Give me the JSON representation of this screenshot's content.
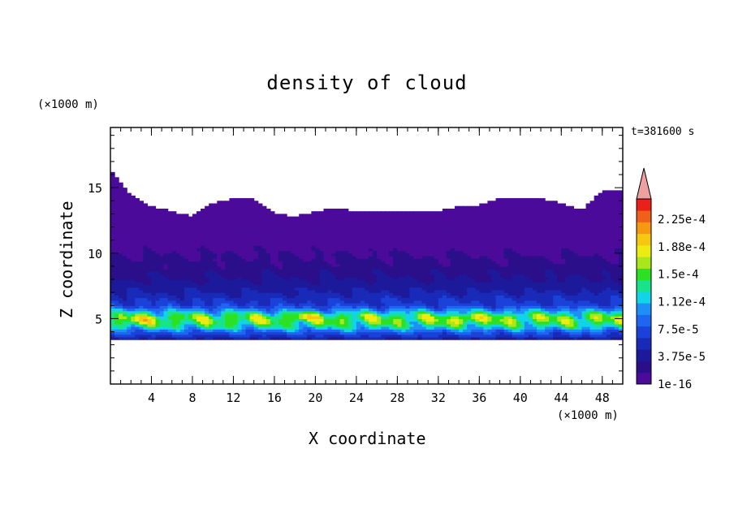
{
  "chart_data": {
    "type": "heatmap",
    "title": "density of cloud",
    "xlabel": "X coordinate",
    "ylabel": "Z coordinate",
    "x_unit": "(×1000 m)",
    "z_unit": "(×1000 m)",
    "time_label": "t=381600 s",
    "xlim": [
      0,
      50
    ],
    "ylim": [
      0,
      19.6
    ],
    "x_ticks": [
      4,
      8,
      12,
      16,
      20,
      24,
      28,
      32,
      36,
      40,
      44,
      48
    ],
    "y_ticks": [
      5,
      10,
      15
    ],
    "colorbar": {
      "labels": [
        "2.25e-4",
        "1.88e-4",
        "1.5e-4",
        "1.12e-4",
        "7.5e-5",
        "3.75e-5",
        "1e-16"
      ],
      "colors": [
        "#4b0a9a",
        "#2b0f8a",
        "#1c1a9a",
        "#1a2ab8",
        "#1a42d8",
        "#1e66f0",
        "#1c90f6",
        "#11d4e6",
        "#19e28c",
        "#2ce022",
        "#a8e81a",
        "#ecec12",
        "#f6c812",
        "#f69812",
        "#f06018",
        "#e82218",
        "#f0a0a0"
      ],
      "extend": "max"
    },
    "profile": {
      "z": [
        3.3,
        3.6,
        4.0,
        4.4,
        4.8,
        5.2,
        5.6,
        6.0,
        7.0,
        8.0,
        9.5,
        11.0,
        12.5,
        14.0
      ],
      "density": [
        5e-06,
        2e-05,
        4e-05,
        7.5e-05,
        9.5e-05,
        9.5e-05,
        6e-05,
        3e-05,
        1.5e-05,
        7e-06,
        4e-06,
        2e-06,
        5e-07,
        1e-08
      ]
    },
    "cloud_top": {
      "x": [
        0,
        2,
        4,
        6,
        8,
        10,
        12,
        14,
        16,
        18,
        20,
        22,
        24,
        26,
        28,
        30,
        32,
        34,
        36,
        38,
        40,
        42,
        44,
        46,
        48,
        50
      ],
      "z_top": [
        16.3,
        14.5,
        13.6,
        13.2,
        12.8,
        13.8,
        14.2,
        14.2,
        13.0,
        12.8,
        13.2,
        13.5,
        13.2,
        13.2,
        13.2,
        13.3,
        13.2,
        13.6,
        13.7,
        14.2,
        14.3,
        14.2,
        13.8,
        13.3,
        14.8,
        14.8
      ]
    },
    "cloud_base_z": 3.5,
    "max_cells": [
      {
        "x": 19,
        "z": 5.2
      },
      {
        "x": 35,
        "z": 5.0
      },
      {
        "x": 3,
        "z": 4.9
      }
    ]
  }
}
